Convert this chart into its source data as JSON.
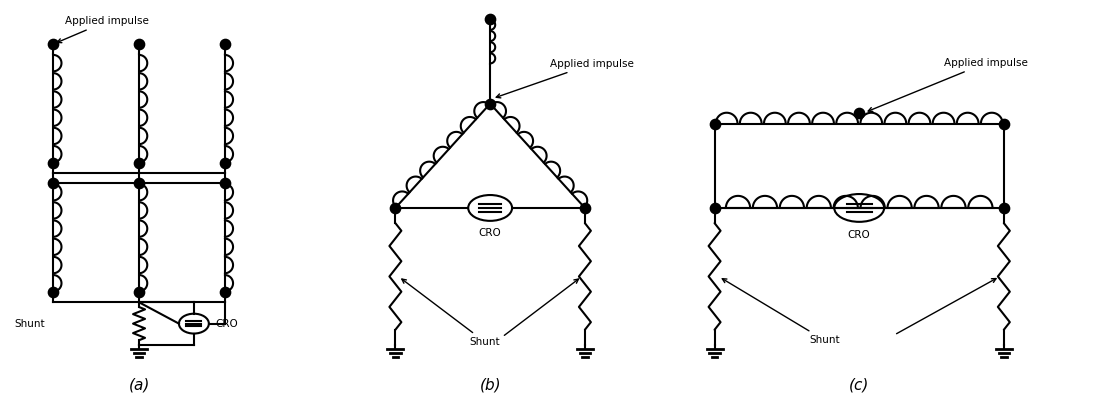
{
  "bg_color": "#ffffff",
  "line_color": "#000000",
  "line_width": 1.5,
  "dot_size": 55,
  "fig_width": 10.95,
  "fig_height": 3.98,
  "label_a": "(a)",
  "label_b": "(b)",
  "label_c": "(c)"
}
